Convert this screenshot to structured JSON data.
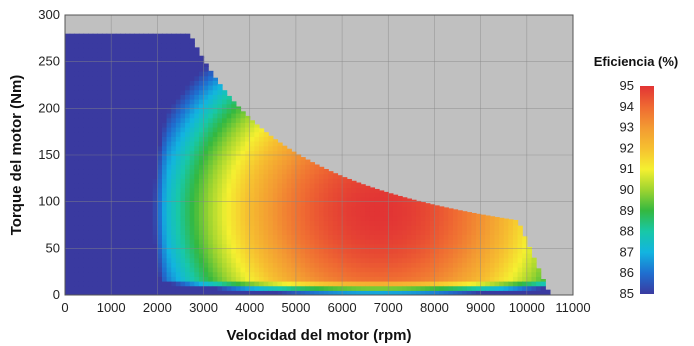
{
  "chart_data": {
    "type": "heatmap",
    "xlabel": "Velocidad del motor (rpm)",
    "ylabel": "Torque del motor (Nm)",
    "xlim": [
      0,
      11000
    ],
    "ylim": [
      0,
      300
    ],
    "x_ticks": [
      0,
      1000,
      2000,
      3000,
      4000,
      5000,
      6000,
      7000,
      8000,
      9000,
      10000,
      11000
    ],
    "y_ticks": [
      0,
      50,
      100,
      150,
      200,
      250,
      300
    ],
    "grid": true,
    "plot_background": "#c0c0c0",
    "colorbar": {
      "title": "Eficiencia (%)",
      "min": 85,
      "max": 95,
      "ticks": [
        95,
        94,
        93,
        92,
        91,
        90,
        89,
        88,
        87,
        86,
        85
      ],
      "colors": [
        "#3a3aa0",
        "#1f6fd0",
        "#12b4e0",
        "#18c8a8",
        "#34b840",
        "#9ed430",
        "#f5f030",
        "#f6c030",
        "#f39a32",
        "#ef6a32",
        "#e23434"
      ]
    },
    "envelope": {
      "max_torque_nm": 280,
      "base_speed_rpm": 2700,
      "corner_speed_rpm": 9800,
      "corner_torque_nm": 80,
      "max_speed_rpm": 10500
    },
    "peak_efficiency": {
      "speed_rpm": 6800,
      "torque_nm": 90,
      "efficiency_pct": 95
    }
  }
}
